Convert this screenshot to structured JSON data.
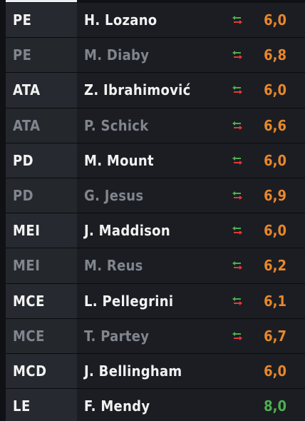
{
  "players": [
    {
      "position": "PE",
      "name": "H. Lozano",
      "rating": "6,0",
      "rating_color": "#e8872c",
      "swap": true,
      "type": "starter"
    },
    {
      "position": "PE",
      "name": "M. Diaby",
      "rating": "6,8",
      "rating_color": "#e8872c",
      "swap": true,
      "type": "sub"
    },
    {
      "position": "ATA",
      "name": "Z. Ibrahimović",
      "rating": "6,0",
      "rating_color": "#e8872c",
      "swap": true,
      "type": "starter"
    },
    {
      "position": "ATA",
      "name": "P. Schick",
      "rating": "6,6",
      "rating_color": "#e8872c",
      "swap": true,
      "type": "sub"
    },
    {
      "position": "PD",
      "name": "M. Mount",
      "rating": "6,0",
      "rating_color": "#e8872c",
      "swap": true,
      "type": "starter"
    },
    {
      "position": "PD",
      "name": "G. Jesus",
      "rating": "6,9",
      "rating_color": "#e8872c",
      "swap": true,
      "type": "sub"
    },
    {
      "position": "MEI",
      "name": "J. Maddison",
      "rating": "6,0",
      "rating_color": "#e8872c",
      "swap": true,
      "type": "starter"
    },
    {
      "position": "MEI",
      "name": "M. Reus",
      "rating": "6,2",
      "rating_color": "#e8872c",
      "swap": true,
      "type": "sub"
    },
    {
      "position": "MCE",
      "name": "L. Pellegrini",
      "rating": "6,1",
      "rating_color": "#e8872c",
      "swap": true,
      "type": "starter"
    },
    {
      "position": "MCE",
      "name": "T. Partey",
      "rating": "6,7",
      "rating_color": "#e8872c",
      "swap": true,
      "type": "sub"
    },
    {
      "position": "MCD",
      "name": "J. Bellingham",
      "rating": "6,0",
      "rating_color": "#e8872c",
      "swap": false,
      "type": "starter"
    },
    {
      "position": "LE",
      "name": "F. Mendy",
      "rating": "8,0",
      "rating_color": "#4caf50",
      "swap": false,
      "type": "starter"
    }
  ],
  "icons": {
    "swap": "substitution-arrows-icon"
  },
  "colors": {
    "rating_default": "#e8872c",
    "rating_high": "#4caf50",
    "arrow_in": "#4caf50",
    "arrow_out": "#e53935"
  }
}
